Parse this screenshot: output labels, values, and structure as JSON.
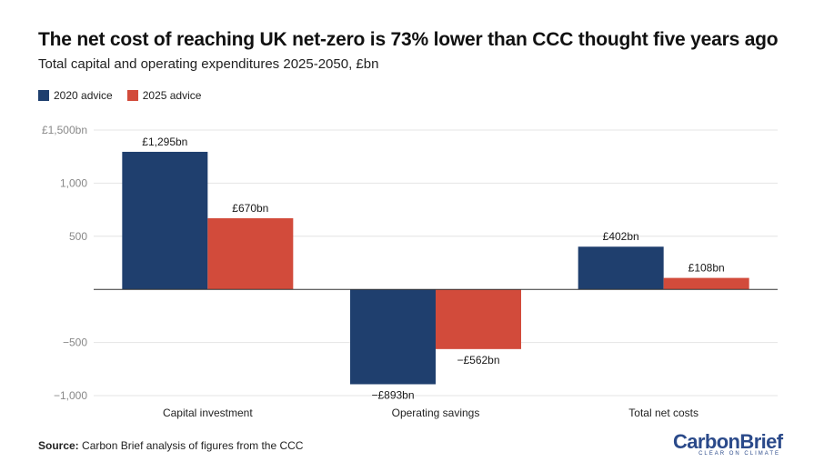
{
  "title": "The net cost of reaching UK net-zero is 73% lower than CCC thought five years ago",
  "subtitle": "Total capital and operating expenditures 2025-2050, £bn",
  "source_label": "Source:",
  "source_text": "Carbon Brief analysis of figures from the CCC",
  "brand": {
    "name": "CarbonBrief",
    "tagline": "CLEAR ON CLIMATE"
  },
  "colors": {
    "series_2020": "#1f3f6e",
    "series_2025": "#d24b3b",
    "grid": "#e4e4e4",
    "axis_text": "#888888"
  },
  "chart_data": {
    "type": "bar",
    "categories": [
      "Capital investment",
      "Operating savings",
      "Total net costs"
    ],
    "series": [
      {
        "name": "2020 advice",
        "values": [
          1295,
          -893,
          402
        ],
        "labels": [
          "£1,295bn",
          "−£893bn",
          "£402bn"
        ]
      },
      {
        "name": "2025 advice",
        "values": [
          670,
          -562,
          108
        ],
        "labels": [
          "£670bn",
          "−£562bn",
          "£108bn"
        ]
      }
    ],
    "yticks": [
      {
        "value": 1500,
        "label": "£1,500bn"
      },
      {
        "value": 1000,
        "label": "1,000"
      },
      {
        "value": 500,
        "label": "500"
      },
      {
        "value": 0,
        "label": ""
      },
      {
        "value": -500,
        "label": "−500"
      },
      {
        "value": -1000,
        "label": "−1,000"
      }
    ],
    "ylim": [
      -1000,
      1500
    ],
    "legend_position": "top-left"
  }
}
